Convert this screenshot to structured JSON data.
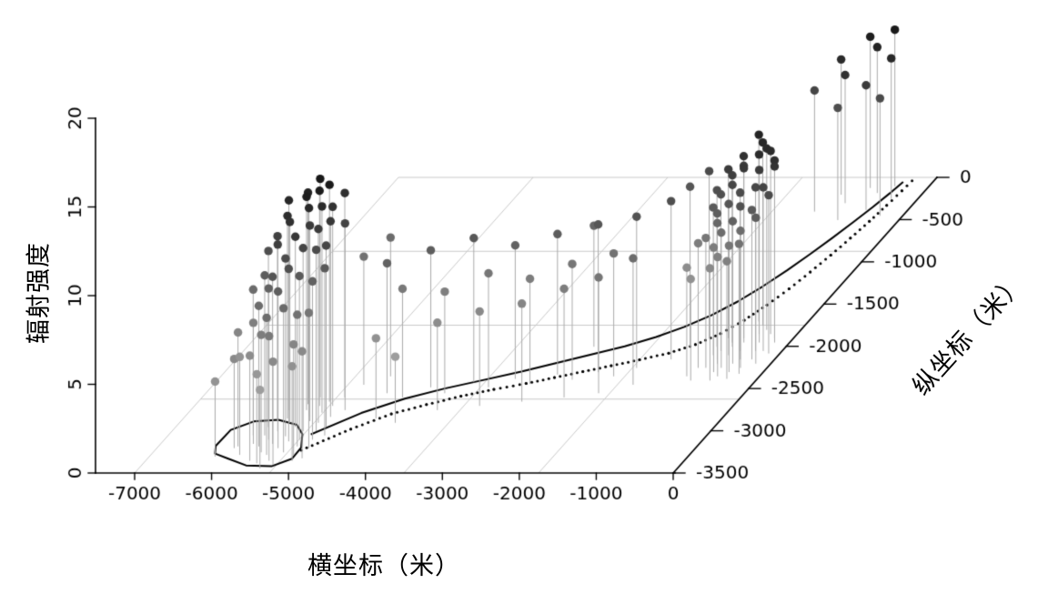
{
  "chart_data": {
    "type": "scatter",
    "subtype": "3d-stem-plot",
    "title": "",
    "xlabel": "横坐标（米）",
    "ylabel": "纵坐标（米）",
    "zlabel": "辐射强度",
    "x_range": [
      -7500,
      0
    ],
    "y_range": [
      0,
      -3500
    ],
    "z_range": [
      0,
      20
    ],
    "x_ticks": {
      "values": [
        -7000,
        -6000,
        -5000,
        -4000,
        -3000,
        -2000,
        -1000,
        0
      ],
      "labels": [
        "-7000",
        "-6000",
        "-5000",
        "-4000",
        "-3000",
        "-2000",
        "-1000",
        "0"
      ]
    },
    "y_ticks": {
      "values": [
        0,
        -500,
        -1000,
        -1500,
        -2000,
        -2500,
        -3000,
        -3500
      ],
      "labels": [
        "0",
        "-500",
        "-1000",
        "-1500",
        "-2000",
        "-2500",
        "-3000",
        "-3500"
      ]
    },
    "z_ticks": {
      "values": [
        0,
        5,
        10,
        15,
        20
      ],
      "labels": [
        "0",
        "5",
        "10",
        "15",
        "20"
      ]
    },
    "grid": {
      "x_lines": [
        -7000,
        -5250,
        -3500,
        -1750
      ],
      "y_lines": [
        0,
        -875,
        -1750,
        -2625
      ],
      "color": "#c9c9c9"
    },
    "colors": {
      "axis": "#000000",
      "tick_text": "#000000",
      "stem": "#aaaaaa",
      "path": "#000000",
      "dot_gray_base": 215,
      "dot_gray_span": 195
    },
    "legend": null,
    "points_format": [
      "x",
      "y",
      "z",
      "intensity_0_to_1"
    ],
    "points": [
      [
        -5500,
        -2750,
        12.0,
        0.95
      ],
      [
        -5400,
        -2820,
        11.7,
        0.9
      ],
      [
        -5570,
        -2900,
        11.3,
        0.85
      ],
      [
        -5330,
        -2880,
        11.0,
        0.8
      ],
      [
        -5450,
        -2950,
        10.7,
        0.82
      ],
      [
        -5630,
        -3000,
        10.5,
        0.78
      ],
      [
        -5300,
        -3000,
        10.3,
        0.75
      ],
      [
        -5470,
        -3060,
        10.0,
        0.72
      ],
      [
        -5370,
        -3120,
        9.7,
        0.7
      ],
      [
        -5550,
        -3150,
        9.4,
        0.66
      ],
      [
        -5250,
        -3100,
        9.2,
        0.64
      ],
      [
        -5430,
        -3200,
        8.8,
        0.62
      ],
      [
        -5650,
        -3100,
        8.5,
        0.6
      ],
      [
        -5310,
        -3250,
        8.1,
        0.56
      ],
      [
        -5500,
        -3280,
        7.7,
        0.54
      ],
      [
        -5200,
        -3180,
        7.4,
        0.52
      ],
      [
        -5400,
        -3350,
        7.0,
        0.48
      ],
      [
        -5600,
        -3250,
        6.6,
        0.46
      ],
      [
        -5150,
        -3280,
        6.2,
        0.42
      ],
      [
        -5300,
        -3400,
        5.8,
        0.4
      ],
      [
        -5100,
        -3350,
        5.3,
        0.36
      ],
      [
        -5700,
        -3180,
        7.9,
        0.55
      ],
      [
        -5750,
        -3050,
        9.0,
        0.63
      ],
      [
        -5800,
        -2950,
        9.9,
        0.7
      ],
      [
        -5200,
        -2900,
        10.9,
        0.8
      ],
      [
        -5130,
        -3000,
        10.2,
        0.72
      ],
      [
        -5650,
        -2850,
        11.4,
        0.87
      ],
      [
        -5730,
        -2750,
        11.8,
        0.9
      ],
      [
        -5270,
        -2780,
        11.6,
        0.88
      ],
      [
        -5380,
        -2700,
        12.1,
        0.96
      ],
      [
        -5550,
        -2680,
        11.9,
        0.93
      ],
      [
        -5210,
        -2700,
        11.2,
        0.84
      ],
      [
        -5080,
        -3100,
        8.9,
        0.6
      ],
      [
        -5030,
        -3200,
        7.6,
        0.5
      ],
      [
        -5000,
        -3320,
        6.0,
        0.4
      ],
      [
        -5050,
        -2950,
        10.2,
        0.75
      ],
      [
        -5110,
        -2830,
        11.0,
        0.82
      ],
      [
        -5800,
        -3150,
        6.8,
        0.45
      ],
      [
        -5850,
        -3280,
        5.5,
        0.35
      ],
      [
        -5530,
        -3380,
        5.0,
        0.33
      ],
      [
        -5430,
        -3440,
        4.4,
        0.3
      ],
      [
        -5650,
        -3350,
        5.9,
        0.38
      ],
      [
        -5300,
        -2650,
        12.2,
        0.97
      ],
      [
        -5150,
        -2600,
        11.5,
        0.86
      ],
      [
        -5000,
        -2750,
        10.5,
        0.76
      ],
      [
        -5900,
        -3050,
        8.2,
        0.55
      ],
      [
        -5970,
        -3180,
        6.4,
        0.42
      ],
      [
        -5750,
        -2880,
        10.4,
        0.77
      ],
      [
        -4970,
        -3050,
        9.4,
        0.64
      ],
      [
        -5470,
        -2600,
        12.3,
        0.98
      ],
      [
        -4650,
        -2550,
        7.3,
        0.6
      ],
      [
        -4400,
        -2600,
        6.1,
        0.48
      ],
      [
        -4150,
        -2480,
        7.7,
        0.62
      ],
      [
        -3900,
        -2550,
        5.7,
        0.45
      ],
      [
        -3650,
        -2420,
        8.1,
        0.65
      ],
      [
        -3400,
        -2480,
        6.4,
        0.5
      ],
      [
        -3150,
        -2380,
        7.5,
        0.6
      ],
      [
        -2900,
        -2440,
        5.9,
        0.46
      ],
      [
        -2650,
        -2330,
        7.9,
        0.63
      ],
      [
        -2400,
        -2390,
        6.5,
        0.5
      ],
      [
        -2150,
        -2300,
        8.3,
        0.66
      ],
      [
        -1900,
        -2350,
        6.9,
        0.52
      ],
      [
        -1700,
        -2250,
        8.5,
        0.68
      ],
      [
        -4500,
        -2850,
        4.5,
        0.36
      ],
      [
        -4200,
        -2900,
        3.7,
        0.3
      ],
      [
        -3800,
        -2750,
        4.9,
        0.38
      ],
      [
        -3300,
        -2700,
        5.3,
        0.4
      ],
      [
        -2800,
        -2650,
        5.5,
        0.42
      ],
      [
        -2300,
        -2600,
        6.1,
        0.46
      ],
      [
        -1900,
        -2550,
        6.5,
        0.5
      ],
      [
        -1550,
        -2450,
        7.1,
        0.55
      ],
      [
        -1350,
        -2150,
        8.9,
        0.7
      ],
      [
        -5050,
        -2450,
        7.2,
        0.52
      ],
      [
        -4800,
        -2350,
        7.8,
        0.55
      ],
      [
        -700,
        -1850,
        10.0,
        0.85
      ],
      [
        -650,
        -1900,
        9.7,
        0.8
      ],
      [
        -750,
        -1950,
        9.4,
        0.78
      ],
      [
        -600,
        -1950,
        9.8,
        0.82
      ],
      [
        -700,
        -2000,
        9.1,
        0.74
      ],
      [
        -800,
        -2050,
        8.8,
        0.7
      ],
      [
        -650,
        -2100,
        8.5,
        0.66
      ],
      [
        -550,
        -2050,
        8.9,
        0.72
      ],
      [
        -750,
        -2150,
        8.2,
        0.62
      ],
      [
        -700,
        -2200,
        7.9,
        0.58
      ],
      [
        -600,
        -2250,
        7.6,
        0.55
      ],
      [
        -500,
        -2200,
        8.0,
        0.6
      ],
      [
        -800,
        -2250,
        7.3,
        0.5
      ],
      [
        -650,
        -2300,
        7.0,
        0.46
      ],
      [
        -550,
        -2350,
        6.7,
        0.44
      ],
      [
        -450,
        -2300,
        7.1,
        0.5
      ],
      [
        -850,
        -2100,
        8.3,
        0.64
      ],
      [
        -900,
        -2000,
        8.8,
        0.7
      ],
      [
        -850,
        -1900,
        9.5,
        0.8
      ],
      [
        -500,
        -1850,
        10.1,
        0.88
      ],
      [
        -400,
        -1950,
        9.7,
        0.8
      ],
      [
        -350,
        -2050,
        9.2,
        0.74
      ],
      [
        -450,
        -2150,
        8.6,
        0.68
      ],
      [
        -350,
        -2250,
        7.7,
        0.55
      ],
      [
        -300,
        -2150,
        8.4,
        0.64
      ],
      [
        -250,
        -2050,
        9.2,
        0.75
      ],
      [
        -200,
        -1950,
        9.9,
        0.84
      ],
      [
        -550,
        -1750,
        10.3,
        0.9
      ],
      [
        -450,
        -1800,
        10.2,
        0.88
      ],
      [
        -650,
        -1700,
        10.5,
        0.92
      ],
      [
        -350,
        -1850,
        10.3,
        0.88
      ],
      [
        -900,
        -2250,
        7.0,
        0.46
      ],
      [
        -950,
        -2350,
        6.1,
        0.38
      ],
      [
        -850,
        -2400,
        5.7,
        0.36
      ],
      [
        -600,
        -2400,
        6.3,
        0.4
      ],
      [
        -400,
        -2380,
        6.6,
        0.44
      ],
      [
        -300,
        -2320,
        7.3,
        0.52
      ],
      [
        -200,
        -2200,
        8.2,
        0.62
      ],
      [
        -150,
        -2080,
        8.9,
        0.72
      ],
      [
        -250,
        -1900,
        10.0,
        0.86
      ],
      [
        -450,
        -100,
        8.8,
        0.97
      ],
      [
        -600,
        -180,
        8.2,
        0.92
      ],
      [
        -350,
        -250,
        7.9,
        0.9
      ],
      [
        -750,
        -120,
        8.5,
        0.95
      ],
      [
        -900,
        -300,
        7.2,
        0.85
      ],
      [
        -550,
        -380,
        7.0,
        0.8
      ],
      [
        -1050,
        -200,
        7.6,
        0.88
      ],
      [
        -300,
        -450,
        6.6,
        0.72
      ],
      [
        -800,
        -500,
        6.3,
        0.7
      ],
      [
        -1200,
        -400,
        6.8,
        0.75
      ],
      [
        -6150,
        -3300,
        4.2,
        0.35
      ],
      [
        -6000,
        -3200,
        5.0,
        0.4
      ],
      [
        -1100,
        -1900,
        9.4,
        0.72
      ],
      [
        -1250,
        -2000,
        9.0,
        0.66
      ],
      [
        -2500,
        -2000,
        6.8,
        0.58
      ]
    ],
    "ground_path_loop": [
      [
        -6260,
        -3180
      ],
      [
        -6250,
        -2990
      ],
      [
        -6050,
        -2890
      ],
      [
        -5750,
        -2870
      ],
      [
        -5450,
        -2930
      ],
      [
        -5270,
        -3040
      ],
      [
        -5130,
        -3200
      ],
      [
        -5120,
        -3330
      ],
      [
        -5300,
        -3420
      ],
      [
        -5640,
        -3410
      ],
      [
        -5950,
        -3330
      ],
      [
        -6180,
        -3270
      ],
      [
        -6260,
        -3180
      ]
    ],
    "ground_path_upper_solid": [
      [
        -5150,
        -3040
      ],
      [
        -4750,
        -2790
      ],
      [
        -4350,
        -2620
      ],
      [
        -3950,
        -2500
      ],
      [
        -3550,
        -2400
      ],
      [
        -3150,
        -2300
      ],
      [
        -2800,
        -2200
      ],
      [
        -2450,
        -2100
      ],
      [
        -2100,
        -2000
      ],
      [
        -1800,
        -1890
      ],
      [
        -1550,
        -1770
      ],
      [
        -1330,
        -1630
      ],
      [
        -1150,
        -1470
      ],
      [
        -1000,
        -1290
      ],
      [
        -870,
        -1100
      ],
      [
        -760,
        -910
      ],
      [
        -660,
        -720
      ],
      [
        -570,
        -530
      ],
      [
        -490,
        -350
      ],
      [
        -430,
        -190
      ],
      [
        -390,
        -60
      ]
    ],
    "ground_path_lower_dotted": [
      [
        -5100,
        -3230
      ],
      [
        -4700,
        -2980
      ],
      [
        -4350,
        -2800
      ],
      [
        -4000,
        -2690
      ],
      [
        -3650,
        -2590
      ],
      [
        -3300,
        -2510
      ],
      [
        -2950,
        -2440
      ],
      [
        -2650,
        -2370
      ],
      [
        -2350,
        -2300
      ],
      [
        -2050,
        -2230
      ],
      [
        -1750,
        -2160
      ],
      [
        -1450,
        -2080
      ],
      [
        -1200,
        -1980
      ],
      [
        -1000,
        -1850
      ],
      [
        -850,
        -1690
      ],
      [
        -730,
        -1510
      ],
      [
        -630,
        -1320
      ],
      [
        -550,
        -1120
      ],
      [
        -480,
        -920
      ],
      [
        -420,
        -720
      ],
      [
        -370,
        -520
      ],
      [
        -330,
        -330
      ],
      [
        -300,
        -160
      ],
      [
        -285,
        -40
      ]
    ]
  }
}
